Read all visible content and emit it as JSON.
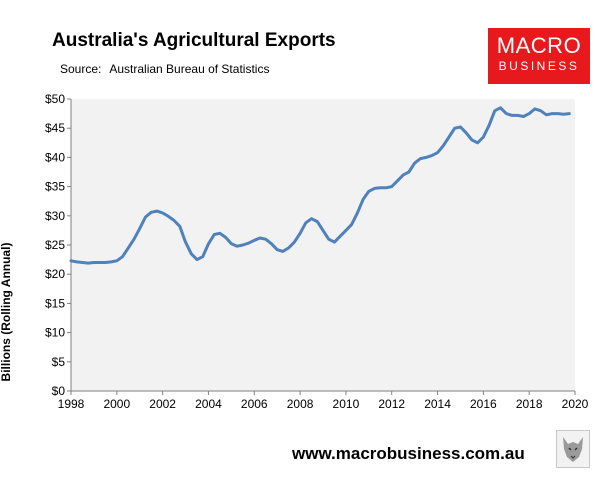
{
  "title": "Australia's Agricultural Exports",
  "source": {
    "label": "Source:",
    "text": "Australian Bureau of Statistics"
  },
  "logo": {
    "line1": "MACRO",
    "line2": "BUSINESS",
    "color": "#e8191c"
  },
  "footer": "www.macrobusiness.com.au",
  "chart_data": {
    "type": "line",
    "title": "Australia's Agricultural Exports",
    "xlabel": "",
    "ylabel": "Billions (Rolling Annual)",
    "xlim": [
      1998,
      2020
    ],
    "ylim": [
      0,
      50
    ],
    "x_ticks": [
      1998,
      2000,
      2002,
      2004,
      2006,
      2008,
      2010,
      2012,
      2014,
      2016,
      2018,
      2020
    ],
    "y_ticks": [
      0,
      5,
      10,
      15,
      20,
      25,
      30,
      35,
      40,
      45,
      50
    ],
    "y_tick_labels": [
      "$0",
      "$5",
      "$10",
      "$15",
      "$20",
      "$25",
      "$30",
      "$35",
      "$40",
      "$45",
      "$50"
    ],
    "grid": false,
    "plot_background": "#f2f2f2",
    "line_color": "#4f81bd",
    "series": [
      {
        "values_x": [
          1998.0,
          1998.25,
          1998.5,
          1998.75,
          1999.0,
          1999.25,
          1999.5,
          1999.75,
          2000.0,
          2000.25,
          2000.5,
          2000.75,
          2001.0,
          2001.25,
          2001.5,
          2001.75,
          2002.0,
          2002.25,
          2002.5,
          2002.75,
          2003.0,
          2003.25,
          2003.5,
          2003.75,
          2004.0,
          2004.25,
          2004.5,
          2004.75,
          2005.0,
          2005.25,
          2005.5,
          2005.75,
          2006.0,
          2006.25,
          2006.5,
          2006.75,
          2007.0,
          2007.25,
          2007.5,
          2007.75,
          2008.0,
          2008.25,
          2008.5,
          2008.75,
          2009.0,
          2009.25,
          2009.5,
          2009.75,
          2010.0,
          2010.25,
          2010.5,
          2010.75,
          2011.0,
          2011.25,
          2011.5,
          2011.75,
          2012.0,
          2012.25,
          2012.5,
          2012.75,
          2013.0,
          2013.25,
          2013.5,
          2013.75,
          2014.0,
          2014.25,
          2014.5,
          2014.75,
          2015.0,
          2015.25,
          2015.5,
          2015.75,
          2016.0,
          2016.25,
          2016.5,
          2016.75,
          2017.0,
          2017.25,
          2017.5,
          2017.75,
          2018.0,
          2018.25,
          2018.5,
          2018.75,
          2019.0,
          2019.25,
          2019.5,
          2019.75
        ],
        "values_y": [
          22.3,
          22.1,
          22.0,
          21.9,
          22.0,
          22.0,
          22.0,
          22.1,
          22.3,
          23.0,
          24.5,
          26.0,
          27.8,
          29.8,
          30.6,
          30.8,
          30.5,
          29.9,
          29.2,
          28.2,
          25.5,
          23.5,
          22.5,
          23.0,
          25.2,
          26.8,
          27.0,
          26.3,
          25.2,
          24.8,
          25.0,
          25.3,
          25.8,
          26.2,
          26.0,
          25.2,
          24.2,
          23.9,
          24.5,
          25.5,
          27.0,
          28.8,
          29.5,
          29.0,
          27.5,
          26.0,
          25.5,
          26.5,
          27.5,
          28.5,
          30.5,
          32.8,
          34.2,
          34.7,
          34.8,
          34.8,
          35.0,
          36.0,
          37.0,
          37.5,
          39.0,
          39.8,
          40.0,
          40.3,
          40.8,
          42.0,
          43.5,
          45.0,
          45.2,
          44.2,
          43.0,
          42.5,
          43.5,
          45.5,
          48.0,
          48.5,
          47.5,
          47.2,
          47.2,
          47.0,
          47.5,
          48.3,
          48.0,
          47.3,
          47.5,
          47.5,
          47.4,
          47.5
        ]
      }
    ]
  }
}
